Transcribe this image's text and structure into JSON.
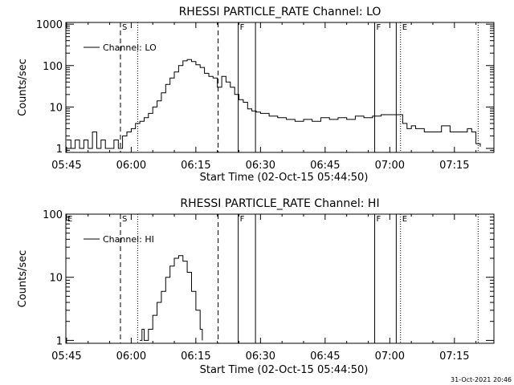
{
  "chart_data": [
    {
      "type": "line",
      "title": "RHESSI PARTICLE_RATE Channel: LO",
      "xlabel": "Start Time (02-Oct-15 05:44:50)",
      "ylabel": "Counts/sec",
      "y_scale": "log",
      "ylim": [
        0.8,
        1100
      ],
      "xlim": [
        "05:44:50",
        "07:24:10"
      ],
      "x_tick_labels": [
        "05:45",
        "06:00",
        "06:15",
        "06:30",
        "06:45",
        "07:00",
        "07:15"
      ],
      "y_tick_labels": [
        "1",
        "10",
        "100",
        "1000"
      ],
      "legend": "Channel: LO",
      "legend_position": "top-left",
      "markers": [
        {
          "time": "05:57:30",
          "style": "dashed",
          "label": "S"
        },
        {
          "time": "06:01:30",
          "style": "dotted",
          "label": ""
        },
        {
          "time": "06:20:10",
          "style": "dashed",
          "label": ""
        },
        {
          "time": "06:24:50",
          "style": "solid",
          "label": "F"
        },
        {
          "time": "06:28:50",
          "style": "solid",
          "label": ""
        },
        {
          "time": "06:56:30",
          "style": "solid",
          "label": "F"
        },
        {
          "time": "07:01:30",
          "style": "solid",
          "label": ""
        },
        {
          "time": "07:02:30",
          "style": "dotted",
          "label": "E"
        },
        {
          "time": "07:20:30",
          "style": "dotted",
          "label": ""
        }
      ],
      "series": [
        {
          "name": "Channel: LO",
          "x": [
            "05:45:00",
            "05:46:00",
            "05:47:00",
            "05:48:00",
            "05:49:00",
            "05:50:00",
            "05:51:00",
            "05:52:00",
            "05:53:00",
            "05:54:00",
            "05:55:00",
            "05:56:00",
            "05:57:00",
            "05:58:00",
            "05:59:00",
            "06:00:00",
            "06:01:00",
            "06:02:00",
            "06:03:00",
            "06:04:00",
            "06:05:00",
            "06:06:00",
            "06:07:00",
            "06:08:00",
            "06:09:00",
            "06:10:00",
            "06:11:00",
            "06:12:00",
            "06:13:00",
            "06:14:00",
            "06:15:00",
            "06:16:00",
            "06:17:00",
            "06:18:00",
            "06:19:00",
            "06:20:00",
            "06:21:00",
            "06:22:00",
            "06:23:00",
            "06:24:00",
            "06:25:00",
            "06:26:00",
            "06:27:00",
            "06:28:00",
            "06:29:00",
            "06:30:00",
            "06:32:00",
            "06:34:00",
            "06:36:00",
            "06:38:00",
            "06:40:00",
            "06:42:00",
            "06:44:00",
            "06:46:00",
            "06:48:00",
            "06:50:00",
            "06:52:00",
            "06:54:00",
            "06:56:00",
            "06:58:00",
            "07:00:00",
            "07:01:00",
            "07:02:00",
            "07:03:00",
            "07:04:00",
            "07:05:00",
            "07:06:00",
            "07:08:00",
            "07:10:00",
            "07:12:00",
            "07:14:00",
            "07:16:00",
            "07:18:00",
            "07:19:00",
            "07:20:00",
            "07:21:00"
          ],
          "y": [
            1.6,
            1,
            1.6,
            1,
            1.6,
            1,
            2.5,
            1,
            1.6,
            1,
            1,
            1.6,
            1,
            2,
            2.5,
            3,
            4,
            4.5,
            5.5,
            7,
            10,
            14,
            22,
            35,
            50,
            70,
            100,
            130,
            140,
            125,
            105,
            90,
            65,
            55,
            50,
            30,
            55,
            40,
            30,
            20,
            15,
            13,
            9,
            8,
            7.5,
            7,
            6,
            5.5,
            5,
            4.5,
            5,
            4.5,
            5.5,
            5,
            5.5,
            5,
            6,
            5.5,
            6,
            6.5,
            6.5,
            6.5,
            6.5,
            4,
            3,
            3.5,
            3,
            2.5,
            2.5,
            3.5,
            2.5,
            2.5,
            3,
            2.5,
            1.3,
            1.1
          ]
        }
      ]
    },
    {
      "type": "line",
      "title": "RHESSI PARTICLE_RATE Channel: HI",
      "xlabel": "Start Time (02-Oct-15 05:44:50)",
      "ylabel": "Counts/sec",
      "y_scale": "log",
      "ylim": [
        0.9,
        100
      ],
      "xlim": [
        "05:44:50",
        "07:24:10"
      ],
      "x_tick_labels": [
        "05:45",
        "06:00",
        "06:15",
        "06:30",
        "06:45",
        "07:00",
        "07:15"
      ],
      "y_tick_labels": [
        "1",
        "10",
        "100"
      ],
      "legend": "Channel: HI",
      "legend_position": "top-left",
      "markers": [
        {
          "time": "05:44:50",
          "style": "none",
          "label": "E"
        },
        {
          "time": "05:57:30",
          "style": "dashed",
          "label": "S"
        },
        {
          "time": "06:01:30",
          "style": "dotted",
          "label": ""
        },
        {
          "time": "06:20:10",
          "style": "dashed",
          "label": ""
        },
        {
          "time": "06:24:50",
          "style": "solid",
          "label": "F"
        },
        {
          "time": "06:28:50",
          "style": "solid",
          "label": ""
        },
        {
          "time": "06:56:30",
          "style": "solid",
          "label": "F"
        },
        {
          "time": "07:01:30",
          "style": "solid",
          "label": ""
        },
        {
          "time": "07:02:30",
          "style": "dotted",
          "label": "E"
        },
        {
          "time": "07:20:30",
          "style": "dotted",
          "label": ""
        }
      ],
      "series": [
        {
          "name": "Channel: HI",
          "x": [
            "06:02:00",
            "06:02:30",
            "06:03:00",
            "06:04:00",
            "06:05:00",
            "06:06:00",
            "06:07:00",
            "06:08:00",
            "06:09:00",
            "06:10:00",
            "06:11:00",
            "06:12:00",
            "06:13:00",
            "06:14:00",
            "06:15:00",
            "06:16:00",
            "06:16:30"
          ],
          "y": [
            1,
            1.5,
            1,
            1.5,
            2.5,
            4,
            6,
            10,
            15,
            20,
            22,
            18,
            12,
            6,
            3,
            1.5,
            1
          ]
        }
      ]
    }
  ],
  "footer": {
    "timestamp": "31-Oct-2021 20:46"
  }
}
